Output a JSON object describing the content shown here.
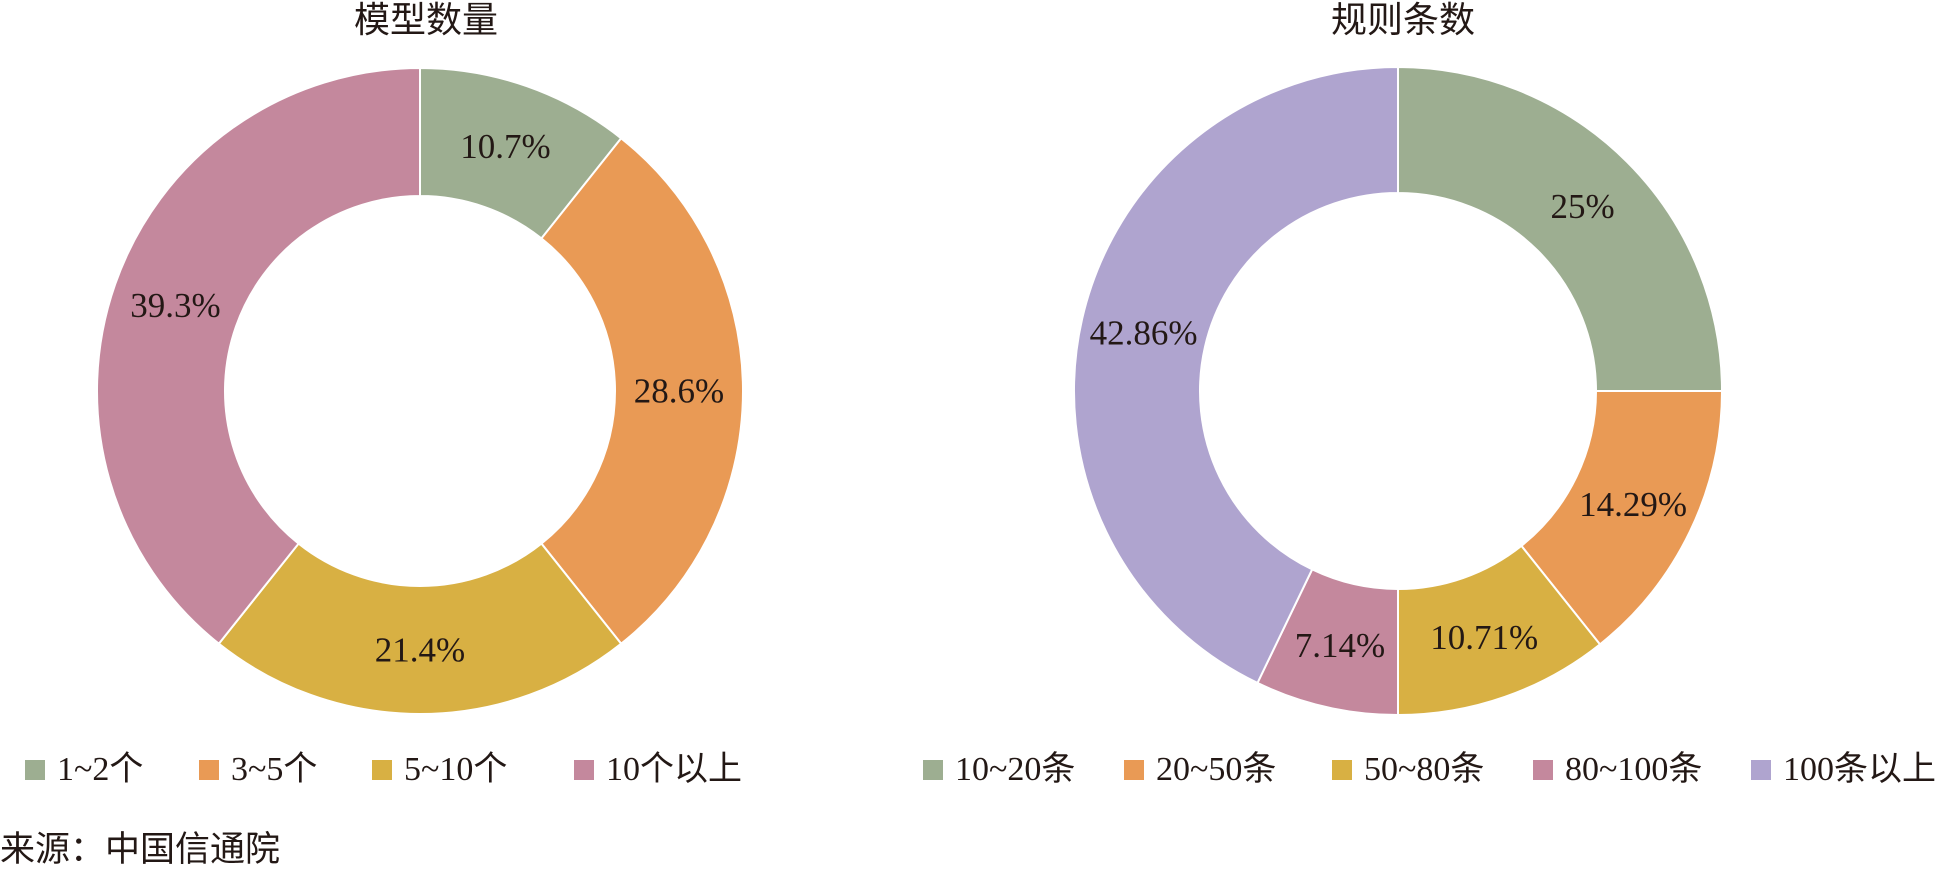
{
  "source": "来源：中国信通院",
  "chart_data": [
    {
      "type": "pie",
      "variant": "donut",
      "title": "模型数量",
      "categories": [
        "1~2个",
        "3~5个",
        "5~10个",
        "10个以上"
      ],
      "values": [
        10.7,
        28.6,
        21.4,
        39.3
      ],
      "data_labels": [
        "10.7%",
        "28.6%",
        "21.4%",
        "39.3%"
      ],
      "colors": [
        "#9DAE91",
        "#E99A55",
        "#D8B043",
        "#C4889D"
      ],
      "legend": "bottom"
    },
    {
      "type": "pie",
      "variant": "donut",
      "title": "规则条数",
      "categories": [
        "10~20条",
        "20~50条",
        "50~80条",
        "80~100条",
        "100条以上"
      ],
      "values": [
        25,
        14.29,
        10.71,
        7.14,
        42.86
      ],
      "data_labels": [
        "25%",
        "14.29%",
        "10.71%",
        "7.14%",
        "42.86%"
      ],
      "colors": [
        "#9DAE91",
        "#E99A55",
        "#D8B043",
        "#C4889D",
        "#AFA4CF"
      ],
      "legend": "bottom"
    }
  ]
}
